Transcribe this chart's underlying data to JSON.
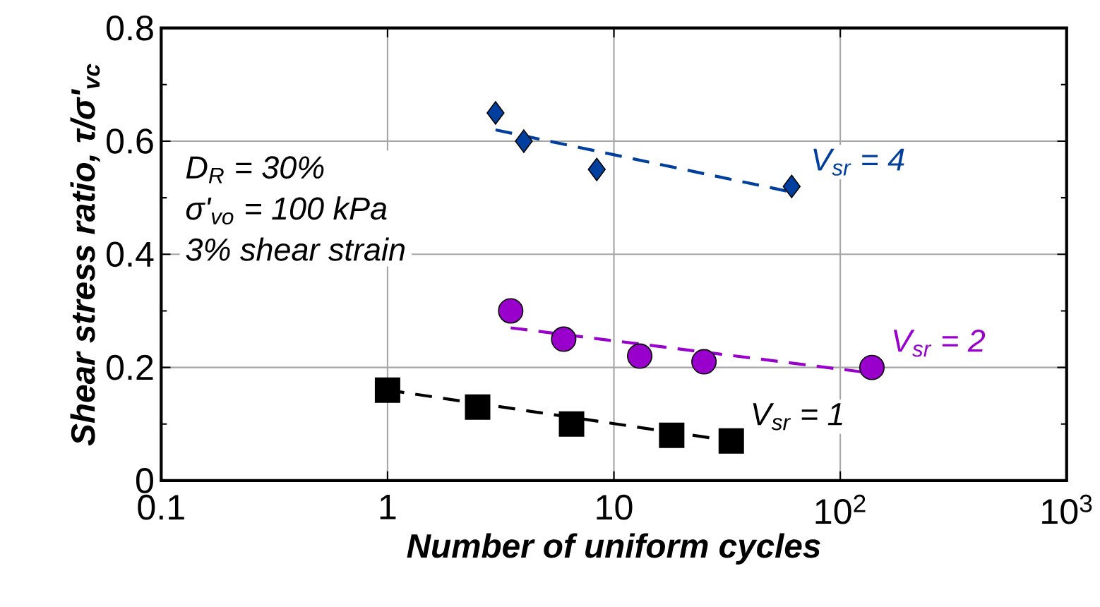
{
  "chart_data": {
    "type": "scatter",
    "xlabel": "Number of uniform cycles",
    "ylabel": "Shear stress ratio, τ/σ'$_{vc}$",
    "log": "x",
    "xlim": [
      0.1,
      1000
    ],
    "xticks": [
      0.1,
      1,
      10,
      {
        "value": 100,
        "label": "10$^{2}$"
      },
      {
        "value": 1000,
        "label": "10$^{3}$"
      }
    ],
    "ylim": [
      0,
      0.8
    ],
    "yticks": [
      0,
      0.2,
      0.4,
      0.6,
      0.8
    ],
    "grid": true,
    "legend": false,
    "series": [
      {
        "name": "V$_{sr}$ = 4",
        "marker": "diamond",
        "color": "#003f9e",
        "x": [
          3.0,
          4.0,
          8.4,
          61
        ],
        "values": [
          0.65,
          0.6,
          0.55,
          0.52
        ]
      },
      {
        "type": "line",
        "line_style": "dashed",
        "color": "#003f9e",
        "x": [
          3.0,
          61
        ],
        "values": [
          0.62,
          0.51
        ]
      },
      {
        "name": "V$_{sr}$ = 2",
        "marker": "circle",
        "color": "#9900cc",
        "x": [
          3.5,
          6.0,
          13,
          25,
          138
        ],
        "values": [
          0.3,
          0.25,
          0.22,
          0.21,
          0.2
        ]
      },
      {
        "type": "line",
        "line_style": "dashed",
        "color": "#9900cc",
        "x": [
          3.5,
          138
        ],
        "values": [
          0.27,
          0.19
        ]
      },
      {
        "name": "V$_{sr}$ = 1",
        "marker": "square",
        "color": "#000000",
        "x": [
          1.0,
          2.5,
          6.5,
          18,
          33
        ],
        "values": [
          0.16,
          0.13,
          0.1,
          0.08,
          0.07
        ]
      },
      {
        "type": "line",
        "line_style": "dashed",
        "color": "#000000",
        "x": [
          1.0,
          33
        ],
        "values": [
          0.16,
          0.07
        ]
      }
    ],
    "annotations": [
      "D$_{R}$ = 30%",
      "σ'$_{vo}$ = 100 kPa",
      "3% shear strain"
    ]
  }
}
